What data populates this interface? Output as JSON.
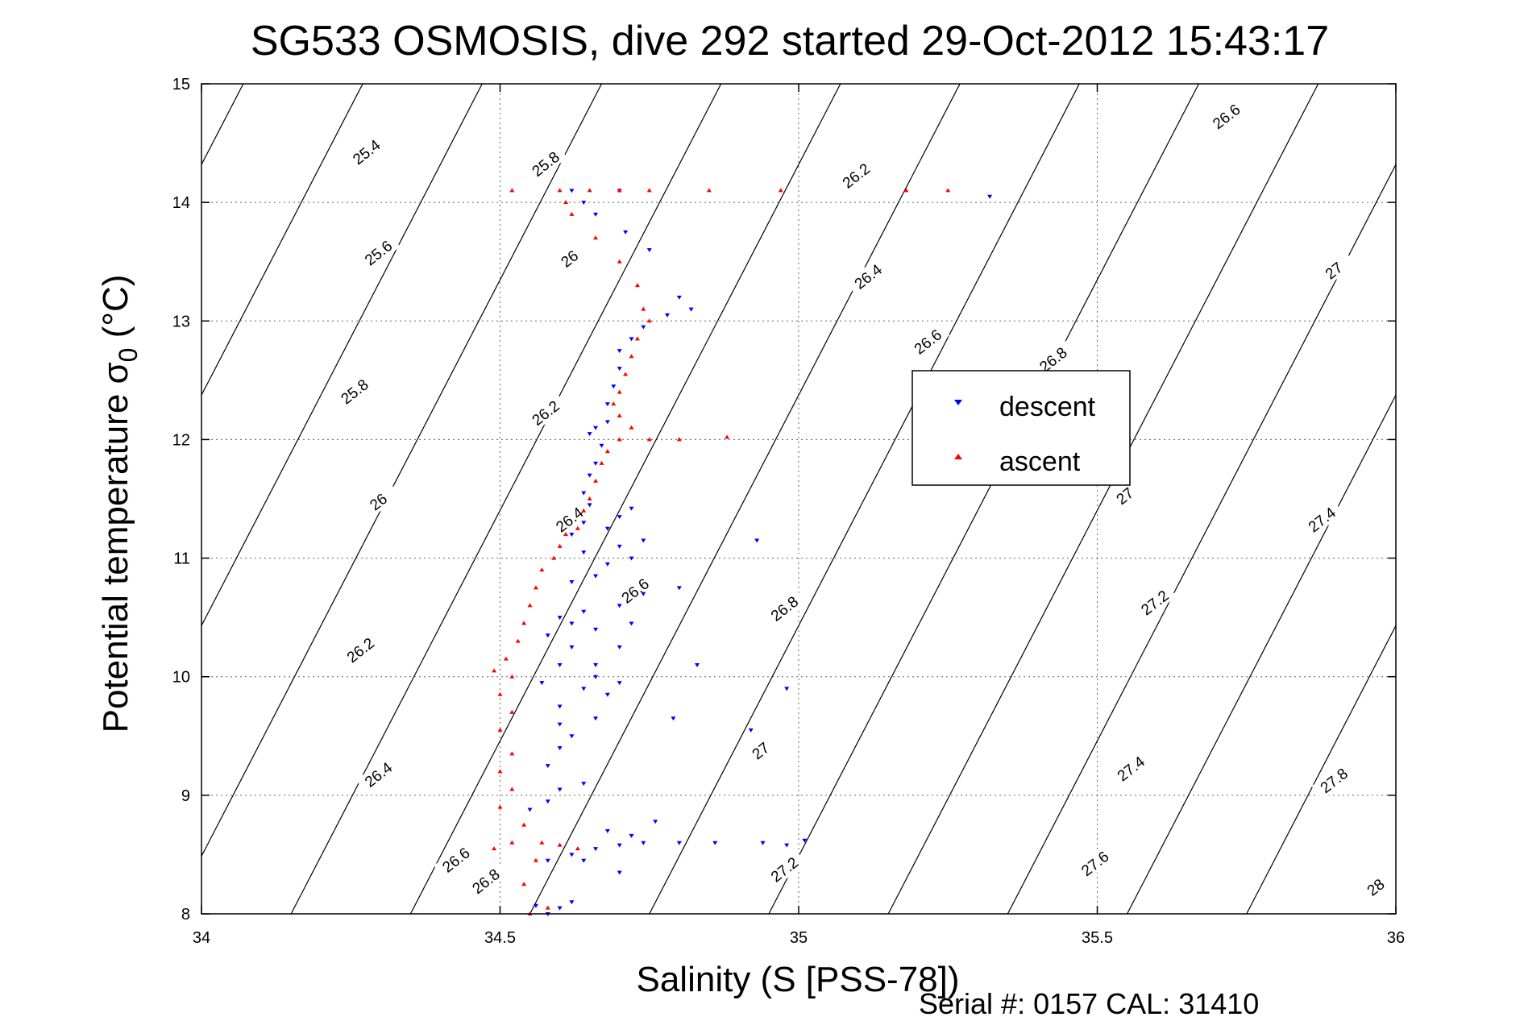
{
  "chart_data": {
    "type": "scatter",
    "title": "SG533 OSMOSIS, dive 292 started 29-Oct-2012 15:43:17",
    "xlabel": "Salinity (S [PSS-78])",
    "ylabel_main": "Potential temperature σ",
    "ylabel_sub": "0",
    "ylabel_unit": " (°C)",
    "footer": "Serial #: 0157  CAL: 31410",
    "xlim": [
      34,
      36
    ],
    "ylim": [
      8,
      15
    ],
    "x_ticks": [
      "34",
      "34.5",
      "35",
      "35.5",
      "36"
    ],
    "y_ticks": [
      "8",
      "9",
      "10",
      "11",
      "12",
      "13",
      "14",
      "15"
    ],
    "grid": true,
    "legend_position": "right-center",
    "legend": [
      "descent",
      "ascent"
    ],
    "series": [
      {
        "name": "descent",
        "color": "#0000ff",
        "marker": "triangle-down",
        "points": [
          [
            34.58,
            8.0
          ],
          [
            34.6,
            8.05
          ],
          [
            34.56,
            8.07
          ],
          [
            34.62,
            8.1
          ],
          [
            34.58,
            8.45
          ],
          [
            34.62,
            8.5
          ],
          [
            34.66,
            8.55
          ],
          [
            34.7,
            8.58
          ],
          [
            34.74,
            8.6
          ],
          [
            34.8,
            8.6
          ],
          [
            34.86,
            8.6
          ],
          [
            34.94,
            8.6
          ],
          [
            34.98,
            8.58
          ],
          [
            35.01,
            8.62
          ],
          [
            34.68,
            8.7
          ],
          [
            34.72,
            8.66
          ],
          [
            34.64,
            8.45
          ],
          [
            34.7,
            8.35
          ],
          [
            34.76,
            8.78
          ],
          [
            34.55,
            8.88
          ],
          [
            34.58,
            8.95
          ],
          [
            34.6,
            9.05
          ],
          [
            34.64,
            9.1
          ],
          [
            34.58,
            9.25
          ],
          [
            34.6,
            9.4
          ],
          [
            34.62,
            9.5
          ],
          [
            34.6,
            9.6
          ],
          [
            34.66,
            9.65
          ],
          [
            34.6,
            9.75
          ],
          [
            34.64,
            9.9
          ],
          [
            34.68,
            9.85
          ],
          [
            34.7,
            9.95
          ],
          [
            34.66,
            10.0
          ],
          [
            34.57,
            9.95
          ],
          [
            34.6,
            10.1
          ],
          [
            34.62,
            10.25
          ],
          [
            34.58,
            10.35
          ],
          [
            34.62,
            10.45
          ],
          [
            34.66,
            10.4
          ],
          [
            34.72,
            10.45
          ],
          [
            34.6,
            10.5
          ],
          [
            34.64,
            10.55
          ],
          [
            34.7,
            10.6
          ],
          [
            34.74,
            10.7
          ],
          [
            34.8,
            10.75
          ],
          [
            34.62,
            10.8
          ],
          [
            34.66,
            10.85
          ],
          [
            34.68,
            10.95
          ],
          [
            34.72,
            11.0
          ],
          [
            34.64,
            11.05
          ],
          [
            34.7,
            11.1
          ],
          [
            34.74,
            11.15
          ],
          [
            34.68,
            11.25
          ],
          [
            34.7,
            11.35
          ],
          [
            34.72,
            11.42
          ],
          [
            34.93,
            11.15
          ],
          [
            34.83,
            10.1
          ],
          [
            34.98,
            9.9
          ],
          [
            34.92,
            9.55
          ],
          [
            34.79,
            9.65
          ],
          [
            34.66,
            10.1
          ],
          [
            34.7,
            10.25
          ],
          [
            34.62,
            11.2
          ],
          [
            34.64,
            11.3
          ],
          [
            34.65,
            11.45
          ],
          [
            34.64,
            11.55
          ],
          [
            34.65,
            11.7
          ],
          [
            34.66,
            11.8
          ],
          [
            34.67,
            11.95
          ],
          [
            34.65,
            12.05
          ],
          [
            34.66,
            12.1
          ],
          [
            34.68,
            12.15
          ],
          [
            34.68,
            12.3
          ],
          [
            34.69,
            12.45
          ],
          [
            34.7,
            12.6
          ],
          [
            34.7,
            12.75
          ],
          [
            34.72,
            12.85
          ],
          [
            34.74,
            12.95
          ],
          [
            34.78,
            13.05
          ],
          [
            34.8,
            13.2
          ],
          [
            34.82,
            13.1
          ],
          [
            34.75,
            13.6
          ],
          [
            34.71,
            13.75
          ],
          [
            34.66,
            13.9
          ],
          [
            34.64,
            14.0
          ],
          [
            34.62,
            14.1
          ],
          [
            34.7,
            14.1
          ],
          [
            35.32,
            14.05
          ]
        ]
      },
      {
        "name": "ascent",
        "color": "#ff0000",
        "marker": "triangle-up",
        "points": [
          [
            34.55,
            8.0
          ],
          [
            34.58,
            8.05
          ],
          [
            34.54,
            8.25
          ],
          [
            34.56,
            8.45
          ],
          [
            34.49,
            8.55
          ],
          [
            34.52,
            8.6
          ],
          [
            34.57,
            8.6
          ],
          [
            34.6,
            8.58
          ],
          [
            34.63,
            8.55
          ],
          [
            34.54,
            8.75
          ],
          [
            34.5,
            8.9
          ],
          [
            34.52,
            9.05
          ],
          [
            34.5,
            9.2
          ],
          [
            34.52,
            9.35
          ],
          [
            34.5,
            9.55
          ],
          [
            34.52,
            9.7
          ],
          [
            34.5,
            9.85
          ],
          [
            34.52,
            10.0
          ],
          [
            34.49,
            10.05
          ],
          [
            34.51,
            10.15
          ],
          [
            34.53,
            10.3
          ],
          [
            34.54,
            10.45
          ],
          [
            34.55,
            10.6
          ],
          [
            34.56,
            10.75
          ],
          [
            34.57,
            10.9
          ],
          [
            34.59,
            11.0
          ],
          [
            34.6,
            11.1
          ],
          [
            34.61,
            11.2
          ],
          [
            34.63,
            11.25
          ],
          [
            34.64,
            11.4
          ],
          [
            34.65,
            11.5
          ],
          [
            34.66,
            11.65
          ],
          [
            34.67,
            11.8
          ],
          [
            34.68,
            11.9
          ],
          [
            34.7,
            12.0
          ],
          [
            34.75,
            12.0
          ],
          [
            34.8,
            12.0
          ],
          [
            34.88,
            12.02
          ],
          [
            34.72,
            12.1
          ],
          [
            34.7,
            12.2
          ],
          [
            34.69,
            12.3
          ],
          [
            34.7,
            12.4
          ],
          [
            34.71,
            12.55
          ],
          [
            34.72,
            12.7
          ],
          [
            34.73,
            12.85
          ],
          [
            34.75,
            13.0
          ],
          [
            34.74,
            13.1
          ],
          [
            34.73,
            13.3
          ],
          [
            34.7,
            13.5
          ],
          [
            34.66,
            13.7
          ],
          [
            34.62,
            13.9
          ],
          [
            34.61,
            14.0
          ],
          [
            34.6,
            14.1
          ],
          [
            34.65,
            14.1
          ],
          [
            34.7,
            14.1
          ],
          [
            34.75,
            14.1
          ],
          [
            34.85,
            14.1
          ],
          [
            34.97,
            14.1
          ],
          [
            35.18,
            14.1
          ],
          [
            35.25,
            14.1
          ],
          [
            34.52,
            14.1
          ]
        ]
      }
    ],
    "contours": [
      {
        "label": "25.4",
        "anchor": [
          34.28,
          14.4
        ],
        "angle": -38
      },
      {
        "label": "25.6",
        "anchor": [
          34.3,
          13.55
        ],
        "angle": -38
      },
      {
        "label": "25.8",
        "anchor": [
          34.26,
          12.38
        ],
        "angle": -38
      },
      {
        "label": "26",
        "anchor": [
          34.3,
          11.45
        ],
        "angle": -38
      },
      {
        "label": "26.2",
        "anchor": [
          34.27,
          10.2
        ],
        "angle": -38
      },
      {
        "label": "26.4",
        "anchor": [
          34.3,
          9.15
        ],
        "angle": -38
      },
      {
        "label": "26.6",
        "anchor": [
          34.43,
          8.43
        ],
        "angle": -38
      },
      {
        "label": "26.8",
        "anchor": [
          34.48,
          8.25
        ],
        "angle": -38
      },
      {
        "label": "25.8",
        "anchor": [
          34.58,
          14.3
        ],
        "angle": -38
      },
      {
        "label": "26",
        "anchor": [
          34.62,
          13.5
        ],
        "angle": -38
      },
      {
        "label": "26.2",
        "anchor": [
          34.58,
          12.2
        ],
        "angle": -38
      },
      {
        "label": "26.4",
        "anchor": [
          34.62,
          11.3
        ],
        "angle": -38
      },
      {
        "label": "26.6",
        "anchor": [
          34.73,
          10.7
        ],
        "angle": -38
      },
      {
        "label": "26.8",
        "anchor": [
          34.98,
          10.55
        ],
        "angle": -38
      },
      {
        "label": "27",
        "anchor": [
          34.94,
          9.35
        ],
        "angle": -38
      },
      {
        "label": "27.2",
        "anchor": [
          34.98,
          8.35
        ],
        "angle": -38
      },
      {
        "label": "26.2",
        "anchor": [
          35.1,
          14.2
        ],
        "angle": -38
      },
      {
        "label": "26.4",
        "anchor": [
          35.12,
          13.35
        ],
        "angle": -38
      },
      {
        "label": "26.6",
        "anchor": [
          35.22,
          12.8
        ],
        "angle": -38
      },
      {
        "label": "26.8",
        "anchor": [
          35.43,
          12.65
        ],
        "angle": -38
      },
      {
        "label": "27",
        "anchor": [
          35.55,
          11.5
        ],
        "angle": -38
      },
      {
        "label": "27.2",
        "anchor": [
          35.6,
          10.6
        ],
        "angle": -38
      },
      {
        "label": "27.4",
        "anchor": [
          35.56,
          9.2
        ],
        "angle": -38
      },
      {
        "label": "27.6",
        "anchor": [
          35.5,
          8.4
        ],
        "angle": -38
      },
      {
        "label": "26.6",
        "anchor": [
          35.72,
          14.7
        ],
        "angle": -38
      },
      {
        "label": "27",
        "anchor": [
          35.9,
          13.4
        ],
        "angle": -38
      },
      {
        "label": "27.4",
        "anchor": [
          35.88,
          11.3
        ],
        "angle": -38
      },
      {
        "label": "27.8",
        "anchor": [
          35.9,
          9.1
        ],
        "angle": -38
      },
      {
        "label": "28",
        "anchor": [
          35.97,
          8.2
        ],
        "angle": -38
      }
    ]
  }
}
